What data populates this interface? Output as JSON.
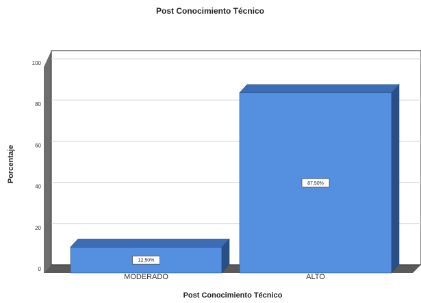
{
  "chart_data": {
    "type": "bar",
    "title": "Post Conocimiento Técnico",
    "xlabel": "Post Conocimiento Técnico",
    "ylabel": "Porcentaje",
    "categories": [
      "MODERADO",
      "ALTO"
    ],
    "values": [
      12.5,
      87.5
    ],
    "data_labels": [
      "12,50%",
      "87,50%"
    ],
    "ylim": [
      0,
      100
    ],
    "yticks": [
      0,
      20,
      40,
      60,
      80,
      100
    ],
    "grid": true,
    "legend": "none",
    "colors": {
      "bar_front": "#5590e0",
      "bar_top": "#3a6db5",
      "bar_side": "#284f86",
      "wall": "#6e6e6e",
      "floor": "#5a5a5a",
      "grid": "#d4d4d4"
    }
  }
}
